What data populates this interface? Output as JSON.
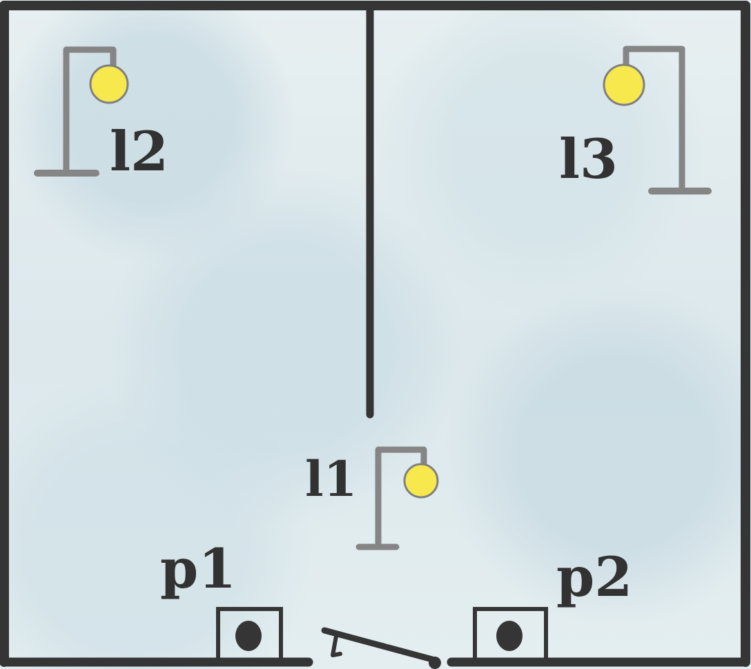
{
  "labels": {
    "l1": "l1",
    "l2": "l2",
    "l3": "l3",
    "p1": "p1",
    "p2": "p2"
  },
  "colors": {
    "wall": "#353535",
    "lamp_post": "#858585",
    "lamp_bulb": "#f7e84e",
    "background": "#dfe9ec"
  }
}
